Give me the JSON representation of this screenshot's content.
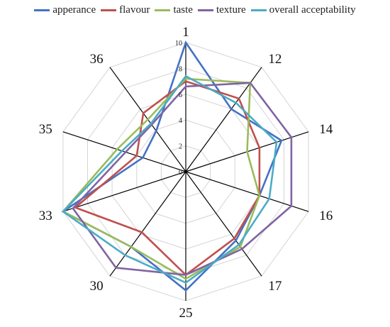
{
  "chart_data": {
    "type": "radar",
    "title": "",
    "categories": [
      "1",
      "12",
      "14",
      "16",
      "17",
      "25",
      "30",
      "33",
      "35",
      "36"
    ],
    "rlim": [
      0,
      10
    ],
    "ticks": [
      0,
      2,
      4,
      6,
      8,
      10
    ],
    "tick_labels": [
      "0",
      "2",
      "4",
      "6",
      "8",
      "10"
    ],
    "grid": true,
    "legend_position": "top",
    "series": [
      {
        "name": "apperance",
        "color": "#4472C4",
        "values": [
          10,
          6.0,
          7.8,
          6.0,
          6.6,
          9.2,
          7.2,
          10,
          3.5,
          3.9
        ]
      },
      {
        "name": "flavour",
        "color": "#C0504D",
        "values": [
          7.0,
          7.0,
          6.0,
          6.0,
          6.4,
          8.0,
          5.8,
          9.0,
          4.0,
          5.6
        ]
      },
      {
        "name": "taste",
        "color": "#9BBB59",
        "values": [
          7.2,
          8.5,
          5.0,
          6.0,
          7.2,
          8.3,
          7.2,
          10,
          5.6,
          5.0
        ]
      },
      {
        "name": "texture",
        "color": "#8064A2",
        "values": [
          6.6,
          8.5,
          8.6,
          8.6,
          7.4,
          8.0,
          9.2,
          9.2,
          4.9,
          4.5
        ]
      },
      {
        "name": "overall acceptability",
        "color": "#4BACC6",
        "values": [
          7.4,
          6.6,
          7.4,
          6.8,
          7.0,
          8.6,
          8.0,
          10,
          5.2,
          4.6
        ]
      }
    ]
  }
}
